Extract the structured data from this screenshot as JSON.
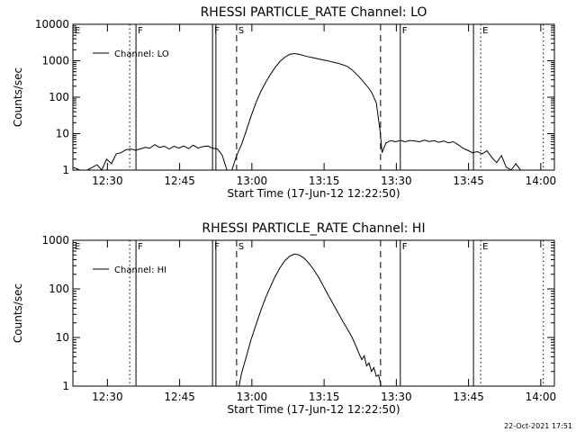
{
  "footer_timestamp": "22-Oct-2021 17:51",
  "chart_data": [
    {
      "type": "line",
      "title": "RHESSI PARTICLE_RATE Channel: LO",
      "xlabel": "Start Time (17-Jun-12 12:22:50)",
      "ylabel": "Counts/sec",
      "yscale": "log",
      "ylim": [
        1,
        10000
      ],
      "xlim_minutes": [
        0,
        100
      ],
      "x_ticks": [
        {
          "value": 7.17,
          "label": "12:30"
        },
        {
          "value": 22.17,
          "label": "12:45"
        },
        {
          "value": 37.17,
          "label": "13:00"
        },
        {
          "value": 52.17,
          "label": "13:15"
        },
        {
          "value": 67.17,
          "label": "13:30"
        },
        {
          "value": 82.17,
          "label": "13:45"
        },
        {
          "value": 97.17,
          "label": "14:00"
        }
      ],
      "y_ticks": [
        {
          "value": 1,
          "label": "1"
        },
        {
          "value": 10,
          "label": "10"
        },
        {
          "value": 100,
          "label": "100"
        },
        {
          "value": 1000,
          "label": "1000"
        },
        {
          "value": 10000,
          "label": "10000"
        }
      ],
      "legend": {
        "position": "top-left",
        "entries": [
          "Channel: LO"
        ]
      },
      "grid": false,
      "markers": [
        {
          "x": 0.0,
          "style": "dotted",
          "label": "E"
        },
        {
          "x": 11.8,
          "style": "dotted",
          "label": ""
        },
        {
          "x": 13.1,
          "style": "solid",
          "label": "F"
        },
        {
          "x": 29.0,
          "style": "solid",
          "label": "F"
        },
        {
          "x": 29.7,
          "style": "solid",
          "label": ""
        },
        {
          "x": 34.0,
          "style": "dashed",
          "label": "S"
        },
        {
          "x": 63.9,
          "style": "dashed",
          "label": ""
        },
        {
          "x": 68.0,
          "style": "solid",
          "label": "F"
        },
        {
          "x": 83.2,
          "style": "solid",
          "label": ""
        },
        {
          "x": 84.7,
          "style": "dotted",
          "label": "E"
        },
        {
          "x": 97.7,
          "style": "dotted",
          "label": ""
        }
      ],
      "series": [
        {
          "name": "Channel: LO",
          "points": [
            [
              0,
              1.2
            ],
            [
              1.5,
              0.9
            ],
            [
              3,
              0.9
            ],
            [
              5,
              1.4
            ],
            [
              6,
              1.0
            ],
            [
              7,
              2.0
            ],
            [
              8,
              1.5
            ],
            [
              9,
              2.8
            ],
            [
              10,
              3.0
            ],
            [
              11,
              3.6
            ],
            [
              12,
              3.8
            ],
            [
              13,
              3.5
            ],
            [
              14,
              3.8
            ],
            [
              15,
              4.2
            ],
            [
              16,
              4.0
            ],
            [
              17,
              5.0
            ],
            [
              18,
              4.2
            ],
            [
              19,
              4.5
            ],
            [
              20,
              3.8
            ],
            [
              21,
              4.5
            ],
            [
              22,
              4.0
            ],
            [
              23,
              4.6
            ],
            [
              24,
              3.9
            ],
            [
              25,
              4.8
            ],
            [
              26,
              4.0
            ],
            [
              27,
              4.4
            ],
            [
              28,
              4.6
            ],
            [
              29,
              4.0
            ],
            [
              30,
              3.8
            ],
            [
              31,
              2.6
            ],
            [
              32,
              0.8
            ],
            [
              33,
              1.0
            ],
            [
              34,
              2.5
            ],
            [
              35,
              5.0
            ],
            [
              36,
              12
            ],
            [
              37,
              30
            ],
            [
              38,
              70
            ],
            [
              39,
              140
            ],
            [
              40,
              250
            ],
            [
              41,
              420
            ],
            [
              42,
              650
            ],
            [
              43,
              950
            ],
            [
              44,
              1250
            ],
            [
              45,
              1500
            ],
            [
              46,
              1580
            ],
            [
              47,
              1500
            ],
            [
              48,
              1380
            ],
            [
              49,
              1280
            ],
            [
              50,
              1200
            ],
            [
              51,
              1120
            ],
            [
              52,
              1050
            ],
            [
              53,
              990
            ],
            [
              54,
              920
            ],
            [
              55,
              860
            ],
            [
              56,
              780
            ],
            [
              57,
              700
            ],
            [
              58,
              560
            ],
            [
              59,
              420
            ],
            [
              60,
              300
            ],
            [
              61,
              210
            ],
            [
              62,
              140
            ],
            [
              63,
              70
            ],
            [
              63.8,
              12
            ],
            [
              64.2,
              3.0
            ],
            [
              65,
              5.5
            ],
            [
              66,
              6.5
            ],
            [
              67,
              6.0
            ],
            [
              68,
              6.5
            ],
            [
              69,
              6.0
            ],
            [
              70,
              6.5
            ],
            [
              71,
              6.3
            ],
            [
              72,
              6.0
            ],
            [
              73,
              6.6
            ],
            [
              74,
              6.1
            ],
            [
              75,
              6.4
            ],
            [
              76,
              5.8
            ],
            [
              77,
              6.3
            ],
            [
              78,
              5.6
            ],
            [
              79,
              6.0
            ],
            [
              80,
              5.0
            ],
            [
              81,
              4.0
            ],
            [
              82,
              3.5
            ],
            [
              83,
              3.0
            ],
            [
              84,
              3.2
            ],
            [
              85,
              2.8
            ],
            [
              86,
              3.4
            ],
            [
              87,
              2.2
            ],
            [
              88,
              1.6
            ],
            [
              89,
              2.5
            ],
            [
              90,
              1.2
            ],
            [
              91,
              0.9
            ],
            [
              92,
              1.5
            ],
            [
              93,
              0.9
            ],
            [
              94,
              1.0
            ],
            [
              95,
              0.9
            ]
          ]
        }
      ]
    },
    {
      "type": "line",
      "title": "RHESSI PARTICLE_RATE Channel: HI",
      "xlabel": "Start Time (17-Jun-12 12:22:50)",
      "ylabel": "Counts/sec",
      "yscale": "log",
      "ylim": [
        1,
        1000
      ],
      "xlim_minutes": [
        0,
        100
      ],
      "x_ticks": [
        {
          "value": 7.17,
          "label": "12:30"
        },
        {
          "value": 22.17,
          "label": "12:45"
        },
        {
          "value": 37.17,
          "label": "13:00"
        },
        {
          "value": 52.17,
          "label": "13:15"
        },
        {
          "value": 67.17,
          "label": "13:30"
        },
        {
          "value": 82.17,
          "label": "13:45"
        },
        {
          "value": 97.17,
          "label": "14:00"
        }
      ],
      "y_ticks": [
        {
          "value": 1,
          "label": "1"
        },
        {
          "value": 10,
          "label": "10"
        },
        {
          "value": 100,
          "label": "100"
        },
        {
          "value": 1000,
          "label": "1000"
        }
      ],
      "legend": {
        "position": "top-left",
        "entries": [
          "Channel: HI"
        ]
      },
      "grid": false,
      "markers": [
        {
          "x": 0.0,
          "style": "dotted",
          "label": "E"
        },
        {
          "x": 11.8,
          "style": "dotted",
          "label": ""
        },
        {
          "x": 13.1,
          "style": "solid",
          "label": "F"
        },
        {
          "x": 29.0,
          "style": "solid",
          "label": "F"
        },
        {
          "x": 29.7,
          "style": "solid",
          "label": ""
        },
        {
          "x": 34.0,
          "style": "dashed",
          "label": "S"
        },
        {
          "x": 63.9,
          "style": "dashed",
          "label": ""
        },
        {
          "x": 68.0,
          "style": "solid",
          "label": "F"
        },
        {
          "x": 83.2,
          "style": "solid",
          "label": ""
        },
        {
          "x": 84.7,
          "style": "dotted",
          "label": "E"
        },
        {
          "x": 97.7,
          "style": "dotted",
          "label": ""
        }
      ],
      "series": [
        {
          "name": "Channel: HI",
          "points": [
            [
              34.5,
              1.0
            ],
            [
              35,
              1.8
            ],
            [
              36,
              4.0
            ],
            [
              37,
              9
            ],
            [
              38,
              18
            ],
            [
              39,
              35
            ],
            [
              40,
              65
            ],
            [
              41,
              110
            ],
            [
              42,
              180
            ],
            [
              43,
              270
            ],
            [
              44,
              380
            ],
            [
              45,
              470
            ],
            [
              46,
              520
            ],
            [
              47,
              500
            ],
            [
              48,
              430
            ],
            [
              49,
              340
            ],
            [
              50,
              250
            ],
            [
              51,
              175
            ],
            [
              52,
              115
            ],
            [
              53,
              75
            ],
            [
              54,
              50
            ],
            [
              55,
              33
            ],
            [
              56,
              22
            ],
            [
              57,
              15
            ],
            [
              58,
              10
            ],
            [
              59,
              6
            ],
            [
              59.5,
              4.5
            ],
            [
              60,
              3.5
            ],
            [
              60.5,
              4.2
            ],
            [
              61,
              2.6
            ],
            [
              61.5,
              3.0
            ],
            [
              62,
              2.0
            ],
            [
              62.5,
              2.4
            ],
            [
              63,
              1.6
            ],
            [
              63.5,
              1.7
            ],
            [
              64,
              1.0
            ]
          ]
        }
      ]
    }
  ]
}
